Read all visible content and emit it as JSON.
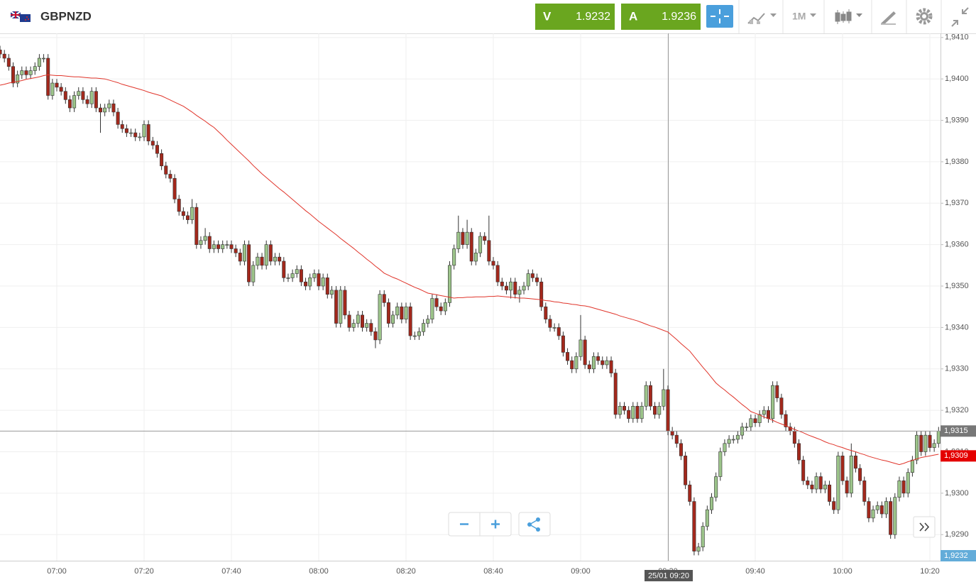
{
  "header": {
    "symbol": "GBPNZD",
    "sell": {
      "label": "V",
      "price": 1.9232
    },
    "buy": {
      "label": "A",
      "price": 1.9236
    },
    "timeframe": "1M"
  },
  "chart_data": {
    "type": "candlestick",
    "categories": [
      null,
      null,
      null,
      null,
      null,
      null,
      null,
      null,
      null,
      null,
      null,
      null,
      null,
      "07:00",
      null,
      null,
      null,
      null,
      null,
      null,
      null,
      null,
      null,
      null,
      null,
      null,
      null,
      null,
      null,
      null,
      null,
      null,
      null,
      "07:20",
      null,
      null,
      null,
      null,
      null,
      null,
      null,
      null,
      null,
      null,
      null,
      null,
      null,
      null,
      null,
      null,
      null,
      null,
      null,
      "07:40",
      null,
      null,
      null,
      null,
      null,
      null,
      null,
      null,
      null,
      null,
      null,
      null,
      null,
      null,
      null,
      null,
      null,
      null,
      null,
      "08:00",
      null,
      null,
      null,
      null,
      null,
      null,
      null,
      null,
      null,
      null,
      null,
      null,
      null,
      null,
      null,
      null,
      null,
      null,
      null,
      "08:20",
      null,
      null,
      null,
      null,
      null,
      null,
      null,
      null,
      null,
      null,
      null,
      null,
      null,
      null,
      null,
      null,
      null,
      null,
      null,
      "08:40",
      null,
      null,
      null,
      null,
      null,
      null,
      null,
      null,
      null,
      null,
      null,
      null,
      null,
      null,
      null,
      null,
      null,
      null,
      null,
      "09:00",
      null,
      null,
      null,
      null,
      null,
      null,
      null,
      null,
      null,
      null,
      null,
      null,
      null,
      null,
      null,
      null,
      null,
      null,
      null,
      "09:20",
      null,
      null,
      null,
      null,
      null,
      null,
      null,
      null,
      null,
      null,
      null,
      null,
      null,
      null,
      null,
      null,
      null,
      null,
      null,
      "09:40",
      null,
      null,
      null,
      null,
      null,
      null,
      null,
      null,
      null,
      null,
      null,
      null,
      null,
      null,
      null,
      null,
      null,
      null,
      null,
      "10:00",
      null,
      null,
      null,
      null,
      null,
      null,
      null,
      null,
      null,
      null,
      null,
      null,
      null,
      null,
      null,
      null,
      null,
      null,
      null,
      "10:20",
      null,
      null
    ],
    "open": [
      1.9407,
      1.9406,
      1.9405,
      1.9403,
      1.9399,
      1.9401,
      1.9402,
      1.9401,
      1.9402,
      1.9403,
      1.9405,
      1.9405,
      1.9396,
      1.9399,
      1.9398,
      1.9397,
      1.9395,
      1.9393,
      1.9396,
      1.9397,
      1.9395,
      1.9394,
      1.9397,
      1.9393,
      1.9392,
      1.9393,
      1.9394,
      1.9392,
      1.9389,
      1.9388,
      1.9387,
      1.9387,
      1.9386,
      1.9386,
      1.9389,
      1.9385,
      1.9384,
      1.9382,
      1.9379,
      1.9377,
      1.9376,
      1.9371,
      1.9368,
      1.9367,
      1.9366,
      1.9369,
      1.936,
      1.9361,
      1.9362,
      1.9359,
      1.936,
      1.9359,
      1.936,
      1.936,
      1.9359,
      1.9358,
      1.9356,
      1.936,
      1.9351,
      1.9355,
      1.9357,
      1.9355,
      1.936,
      1.9356,
      1.9357,
      1.9356,
      1.9352,
      1.9352,
      1.9353,
      1.9354,
      1.9351,
      1.935,
      1.9352,
      1.9353,
      1.935,
      1.9352,
      1.9348,
      1.9349,
      1.9341,
      1.9349,
      1.9343,
      1.934,
      1.9341,
      1.9343,
      1.934,
      1.9341,
      1.9339,
      1.9337,
      1.9348,
      1.9346,
      1.9341,
      1.9343,
      1.9345,
      1.9342,
      1.9345,
      1.9338,
      1.9338,
      1.9339,
      1.9341,
      1.9342,
      1.9347,
      1.9345,
      1.9344,
      1.9346,
      1.9355,
      1.9359,
      1.9363,
      1.936,
      1.9363,
      1.9356,
      1.9358,
      1.9362,
      1.9361,
      1.9356,
      1.9355,
      1.9351,
      1.935,
      1.9349,
      1.9351,
      1.9348,
      1.9349,
      1.935,
      1.9353,
      1.9352,
      1.9351,
      1.9345,
      1.9342,
      1.934,
      1.934,
      1.9338,
      1.9334,
      1.9332,
      1.933,
      1.9333,
      1.9337,
      1.9331,
      1.933,
      1.9333,
      1.9332,
      1.9331,
      1.9332,
      1.9329,
      1.9319,
      1.9321,
      1.932,
      1.9318,
      1.9321,
      1.9318,
      1.9321,
      1.9326,
      1.9321,
      1.9319,
      1.9321,
      1.9325,
      1.9315,
      1.9314,
      1.9312,
      1.9309,
      1.9302,
      1.9298,
      1.9286,
      1.9287,
      1.9292,
      1.9296,
      1.9299,
      1.9304,
      1.931,
      1.9312,
      1.9313,
      1.9313,
      1.9314,
      1.9316,
      1.9316,
      1.9318,
      1.9317,
      1.9319,
      1.932,
      1.9318,
      1.9326,
      1.9323,
      1.9319,
      1.9316,
      1.9315,
      1.9312,
      1.9308,
      1.9303,
      1.9302,
      1.9301,
      1.9304,
      1.9301,
      1.9302,
      1.9298,
      1.9296,
      1.9309,
      1.9303,
      1.93,
      1.9309,
      1.9306,
      1.9303,
      1.9298,
      1.9294,
      1.9296,
      1.9297,
      1.9295,
      1.9298,
      1.929,
      1.9299,
      1.9303,
      1.93,
      1.9305,
      1.9308,
      1.9314,
      1.931,
      1.9314,
      1.9311,
      1.9312
    ],
    "high": [
      1.9408,
      1.9407,
      1.9406,
      1.9404,
      1.9402,
      1.9403,
      1.9403,
      1.9403,
      1.9404,
      1.9406,
      1.9406,
      1.9406,
      1.94,
      1.94,
      1.9399,
      1.9398,
      1.9396,
      1.9397,
      1.9398,
      1.9398,
      1.9396,
      1.9398,
      1.9398,
      1.9394,
      1.9394,
      1.9395,
      1.9395,
      1.9393,
      1.939,
      1.9389,
      1.9388,
      1.9388,
      1.9387,
      1.939,
      1.939,
      1.9386,
      1.9385,
      1.9383,
      1.938,
      1.9378,
      1.9377,
      1.9372,
      1.9369,
      1.9368,
      1.9371,
      1.937,
      1.9362,
      1.9364,
      1.9363,
      1.9361,
      1.9361,
      1.9361,
      1.9361,
      1.9361,
      1.936,
      1.9359,
      1.9361,
      1.9361,
      1.9356,
      1.9358,
      1.9358,
      1.9361,
      1.9361,
      1.9358,
      1.9358,
      1.9357,
      1.9353,
      1.9354,
      1.9355,
      1.9355,
      1.9352,
      1.9353,
      1.9354,
      1.9354,
      1.9353,
      1.9353,
      1.935,
      1.935,
      1.935,
      1.935,
      1.9344,
      1.9342,
      1.9344,
      1.9344,
      1.9342,
      1.9342,
      1.934,
      1.9349,
      1.9349,
      1.9347,
      1.9344,
      1.9346,
      1.9346,
      1.9346,
      1.9346,
      1.9339,
      1.934,
      1.9342,
      1.9343,
      1.9348,
      1.9348,
      1.9346,
      1.9347,
      1.9356,
      1.936,
      1.9367,
      1.9364,
      1.9366,
      1.9364,
      1.9359,
      1.9363,
      1.9363,
      1.9367,
      1.9357,
      1.9356,
      1.9352,
      1.9351,
      1.9352,
      1.9352,
      1.935,
      1.9351,
      1.9354,
      1.9354,
      1.9353,
      1.9352,
      1.9346,
      1.9343,
      1.9341,
      1.9341,
      1.9339,
      1.9335,
      1.9333,
      1.9334,
      1.9343,
      1.9338,
      1.9332,
      1.9334,
      1.9334,
      1.9333,
      1.9333,
      1.9333,
      1.933,
      1.9322,
      1.9322,
      1.9321,
      1.9322,
      1.9322,
      1.9322,
      1.9327,
      1.9327,
      1.9322,
      1.9322,
      1.933,
      1.9326,
      1.9316,
      1.9315,
      1.9313,
      1.931,
      1.9303,
      1.9299,
      1.9288,
      1.9293,
      1.9297,
      1.93,
      1.9305,
      1.9311,
      1.9313,
      1.9314,
      1.9314,
      1.9315,
      1.9317,
      1.9317,
      1.9319,
      1.9319,
      1.932,
      1.9321,
      1.9321,
      1.9327,
      1.9327,
      1.9324,
      1.932,
      1.9317,
      1.9316,
      1.9313,
      1.9309,
      1.9304,
      1.9303,
      1.9305,
      1.9305,
      1.9303,
      1.9303,
      1.9299,
      1.931,
      1.931,
      1.9304,
      1.9312,
      1.931,
      1.9307,
      1.9304,
      1.9299,
      1.9297,
      1.9298,
      1.9298,
      1.9299,
      1.9299,
      1.93,
      1.9304,
      1.9304,
      1.9306,
      1.9309,
      1.9315,
      1.9315,
      1.9315,
      1.9315,
      1.9313,
      1.9316
    ],
    "low": [
      1.9405,
      1.9404,
      1.9402,
      1.9398,
      1.9398,
      1.94,
      1.94,
      1.94,
      1.9401,
      1.9402,
      1.9404,
      1.9395,
      1.9395,
      1.9397,
      1.9396,
      1.9394,
      1.9392,
      1.9392,
      1.9395,
      1.9394,
      1.9393,
      1.9393,
      1.9392,
      1.9387,
      1.9391,
      1.9392,
      1.9391,
      1.9388,
      1.9387,
      1.9386,
      1.9386,
      1.9385,
      1.9385,
      1.9385,
      1.9384,
      1.9383,
      1.9381,
      1.9378,
      1.9376,
      1.9375,
      1.937,
      1.9367,
      1.9366,
      1.9365,
      1.9365,
      1.9359,
      1.9359,
      1.936,
      1.9358,
      1.9358,
      1.9358,
      1.9358,
      1.9359,
      1.9358,
      1.9357,
      1.9355,
      1.9355,
      1.935,
      1.935,
      1.9354,
      1.9354,
      1.9354,
      1.9355,
      1.9355,
      1.9355,
      1.9351,
      1.9351,
      1.9351,
      1.9352,
      1.935,
      1.9349,
      1.9349,
      1.9351,
      1.9349,
      1.9349,
      1.9347,
      1.9347,
      1.934,
      1.934,
      1.9342,
      1.9339,
      1.9339,
      1.934,
      1.9339,
      1.9339,
      1.9338,
      1.9335,
      1.9336,
      1.9345,
      1.934,
      1.934,
      1.9342,
      1.9341,
      1.9341,
      1.9337,
      1.9337,
      1.9337,
      1.9338,
      1.934,
      1.9341,
      1.9344,
      1.9343,
      1.9343,
      1.9345,
      1.9354,
      1.9358,
      1.9359,
      1.9359,
      1.9355,
      1.9355,
      1.9357,
      1.936,
      1.9355,
      1.9354,
      1.935,
      1.9349,
      1.9348,
      1.9347,
      1.9347,
      1.9346,
      1.9348,
      1.9349,
      1.9351,
      1.935,
      1.9344,
      1.9341,
      1.9339,
      1.9339,
      1.9337,
      1.9333,
      1.9331,
      1.9329,
      1.9329,
      1.9332,
      1.933,
      1.9329,
      1.9329,
      1.9331,
      1.933,
      1.933,
      1.9328,
      1.9318,
      1.9318,
      1.9319,
      1.9317,
      1.9317,
      1.9317,
      1.9317,
      1.932,
      1.932,
      1.9318,
      1.9318,
      1.932,
      1.9314,
      1.9313,
      1.9311,
      1.9308,
      1.9301,
      1.9297,
      1.9285,
      1.9285,
      1.9286,
      1.9291,
      1.9295,
      1.9298,
      1.9303,
      1.9309,
      1.9311,
      1.9312,
      1.9312,
      1.9313,
      1.9315,
      1.9315,
      1.9316,
      1.9316,
      1.9318,
      1.9317,
      1.9317,
      1.9322,
      1.9318,
      1.9315,
      1.9314,
      1.9311,
      1.9307,
      1.9302,
      1.9301,
      1.93,
      1.93,
      1.93,
      1.93,
      1.9297,
      1.9295,
      1.9295,
      1.9302,
      1.9299,
      1.9299,
      1.9305,
      1.9302,
      1.9297,
      1.9293,
      1.9293,
      1.9295,
      1.9294,
      1.9294,
      1.9289,
      1.9289,
      1.9298,
      1.9299,
      1.9299,
      1.9304,
      1.9307,
      1.9309,
      1.9309,
      1.931,
      1.931,
      1.9311
    ],
    "close": [
      1.9406,
      1.9405,
      1.9403,
      1.9399,
      1.9401,
      1.9402,
      1.9401,
      1.9402,
      1.9403,
      1.9405,
      1.9405,
      1.9396,
      1.9399,
      1.9398,
      1.9397,
      1.9395,
      1.9393,
      1.9396,
      1.9397,
      1.9395,
      1.9394,
      1.9397,
      1.9393,
      1.9392,
      1.9393,
      1.9394,
      1.9392,
      1.9389,
      1.9388,
      1.9387,
      1.9387,
      1.9386,
      1.9386,
      1.9389,
      1.9385,
      1.9384,
      1.9382,
      1.9379,
      1.9377,
      1.9376,
      1.9371,
      1.9368,
      1.9367,
      1.9366,
      1.9369,
      1.936,
      1.9361,
      1.9362,
      1.9359,
      1.936,
      1.9359,
      1.936,
      1.936,
      1.9359,
      1.9358,
      1.9356,
      1.936,
      1.9351,
      1.9355,
      1.9357,
      1.9355,
      1.936,
      1.9356,
      1.9357,
      1.9356,
      1.9352,
      1.9352,
      1.9353,
      1.9354,
      1.9351,
      1.935,
      1.9352,
      1.9353,
      1.935,
      1.9352,
      1.9348,
      1.9349,
      1.9341,
      1.9349,
      1.9343,
      1.934,
      1.9341,
      1.9343,
      1.934,
      1.9341,
      1.9339,
      1.9337,
      1.9348,
      1.9346,
      1.9341,
      1.9343,
      1.9345,
      1.9342,
      1.9345,
      1.9338,
      1.9338,
      1.9339,
      1.9341,
      1.9342,
      1.9347,
      1.9345,
      1.9344,
      1.9346,
      1.9355,
      1.9359,
      1.9363,
      1.936,
      1.9363,
      1.9356,
      1.9358,
      1.9362,
      1.9361,
      1.9356,
      1.9355,
      1.9351,
      1.935,
      1.9349,
      1.9351,
      1.9348,
      1.9349,
      1.935,
      1.9353,
      1.9352,
      1.9351,
      1.9345,
      1.9342,
      1.934,
      1.934,
      1.9338,
      1.9334,
      1.9332,
      1.933,
      1.9333,
      1.9337,
      1.9331,
      1.933,
      1.9333,
      1.9332,
      1.9331,
      1.9332,
      1.9329,
      1.9319,
      1.9321,
      1.932,
      1.9318,
      1.9321,
      1.9318,
      1.9321,
      1.9326,
      1.9321,
      1.9319,
      1.9321,
      1.9325,
      1.9315,
      1.9314,
      1.9312,
      1.9309,
      1.9302,
      1.9298,
      1.9286,
      1.9287,
      1.9292,
      1.9296,
      1.9299,
      1.9304,
      1.931,
      1.9312,
      1.9313,
      1.9313,
      1.9314,
      1.9316,
      1.9316,
      1.9318,
      1.9317,
      1.9319,
      1.932,
      1.9318,
      1.9326,
      1.9323,
      1.9319,
      1.9316,
      1.9315,
      1.9312,
      1.9308,
      1.9303,
      1.9302,
      1.9301,
      1.9304,
      1.9301,
      1.9302,
      1.9298,
      1.9296,
      1.9309,
      1.9303,
      1.93,
      1.9309,
      1.9306,
      1.9303,
      1.9298,
      1.9294,
      1.9296,
      1.9297,
      1.9295,
      1.9298,
      1.929,
      1.9299,
      1.9303,
      1.93,
      1.9305,
      1.9308,
      1.9314,
      1.931,
      1.9314,
      1.9311,
      1.9312,
      1.9315
    ],
    "up_color": "#9cc48a",
    "down_color": "#a3281c",
    "moving_average": {
      "color": "#e0342a",
      "values": [
        1.93985,
        1.93987,
        1.9399,
        1.93992,
        1.93994,
        1.93996,
        1.93999,
        1.94001,
        1.94003,
        1.94005,
        1.94008,
        1.9401,
        1.94009,
        1.94008,
        1.94008,
        1.94007,
        1.94006,
        1.94005,
        1.94005,
        1.94004,
        1.94003,
        1.94002,
        1.94002,
        1.94001,
        1.94,
        1.93997,
        1.93994,
        1.93991,
        1.93987,
        1.93984,
        1.93981,
        1.93978,
        1.93975,
        1.93972,
        1.93968,
        1.93965,
        1.93962,
        1.93959,
        1.93954,
        1.93949,
        1.93944,
        1.93939,
        1.93934,
        1.93927,
        1.9392,
        1.93912,
        1.93905,
        1.93898,
        1.9389,
        1.93883,
        1.93873,
        1.93863,
        1.93852,
        1.93842,
        1.93832,
        1.93822,
        1.93812,
        1.93802,
        1.93791,
        1.93781,
        1.93771,
        1.93762,
        1.93753,
        1.93744,
        1.93735,
        1.93727,
        1.93718,
        1.93709,
        1.937,
        1.93691,
        1.93682,
        1.93674,
        1.93665,
        1.93656,
        1.93648,
        1.9364,
        1.93632,
        1.93624,
        1.93615,
        1.93607,
        1.93599,
        1.93591,
        1.93582,
        1.93574,
        1.93565,
        1.93557,
        1.93548,
        1.9354,
        1.93531,
        1.93526,
        1.93521,
        1.93517,
        1.93512,
        1.93507,
        1.93502,
        1.93497,
        1.93493,
        1.93488,
        1.93483,
        1.93481,
        1.93479,
        1.93477,
        1.93475,
        1.93473,
        1.93471,
        1.93472,
        1.93472,
        1.93473,
        1.93473,
        1.93474,
        1.93474,
        1.93474,
        1.93475,
        1.93475,
        1.93476,
        1.93475,
        1.93474,
        1.93473,
        1.93472,
        1.93471,
        1.93471,
        1.9347,
        1.93469,
        1.93468,
        1.93467,
        1.93465,
        1.93464,
        1.93462,
        1.93461,
        1.93459,
        1.93458,
        1.93456,
        1.93455,
        1.93453,
        1.93452,
        1.9345,
        1.93447,
        1.93444,
        1.93441,
        1.93438,
        1.93435,
        1.93432,
        1.93428,
        1.93425,
        1.93422,
        1.93419,
        1.93416,
        1.93412,
        1.93408,
        1.93404,
        1.93401,
        1.93397,
        1.93393,
        1.93389,
        1.9338,
        1.93371,
        1.93361,
        1.93352,
        1.93343,
        1.9333,
        1.93317,
        1.93304,
        1.93292,
        1.93279,
        1.93266,
        1.93257,
        1.93249,
        1.9324,
        1.93232,
        1.93223,
        1.93214,
        1.93206,
        1.93197,
        1.93193,
        1.93189,
        1.93184,
        1.9318,
        1.93176,
        1.93171,
        1.93167,
        1.93163,
        1.93158,
        1.93154,
        1.9315,
        1.93146,
        1.93141,
        1.93137,
        1.93133,
        1.93129,
        1.93124,
        1.9312,
        1.93117,
        1.93113,
        1.9311,
        1.93106,
        1.93103,
        1.931,
        1.93096,
        1.93093,
        1.93089,
        1.93086,
        1.93083,
        1.9308,
        1.93078,
        1.93075,
        1.93072,
        1.93069,
        1.93072,
        1.93076,
        1.93079,
        1.93083,
        1.93086,
        1.93088,
        1.9309,
        1.93092,
        1.93094
      ]
    },
    "ylim": [
      1.92837,
      1.9411
    ],
    "yticks": [
      {
        "value": 1.929,
        "label": "1,9290"
      },
      {
        "value": 1.93,
        "label": "1,9300"
      },
      {
        "value": 1.931,
        "label": "1,9310"
      },
      {
        "value": 1.932,
        "label": "1,9320"
      },
      {
        "value": 1.933,
        "label": "1,9330"
      },
      {
        "value": 1.934,
        "label": "1,9340"
      },
      {
        "value": 1.935,
        "label": "1,9350"
      },
      {
        "value": 1.936,
        "label": "1,9360"
      },
      {
        "value": 1.937,
        "label": "1,9370"
      },
      {
        "value": 1.938,
        "label": "1,9380"
      },
      {
        "value": 1.939,
        "label": "1,9390"
      },
      {
        "value": 1.94,
        "label": "1,9400"
      },
      {
        "value": 1.941,
        "label": "1,9410"
      }
    ],
    "grid": true,
    "price_line": {
      "value": 1.9315,
      "label": "1,9315"
    },
    "ma_tag": {
      "value": 1.9309,
      "label": "1,9309"
    },
    "bid_tag": "1,9232",
    "crosshair": "25/01 09:20"
  }
}
